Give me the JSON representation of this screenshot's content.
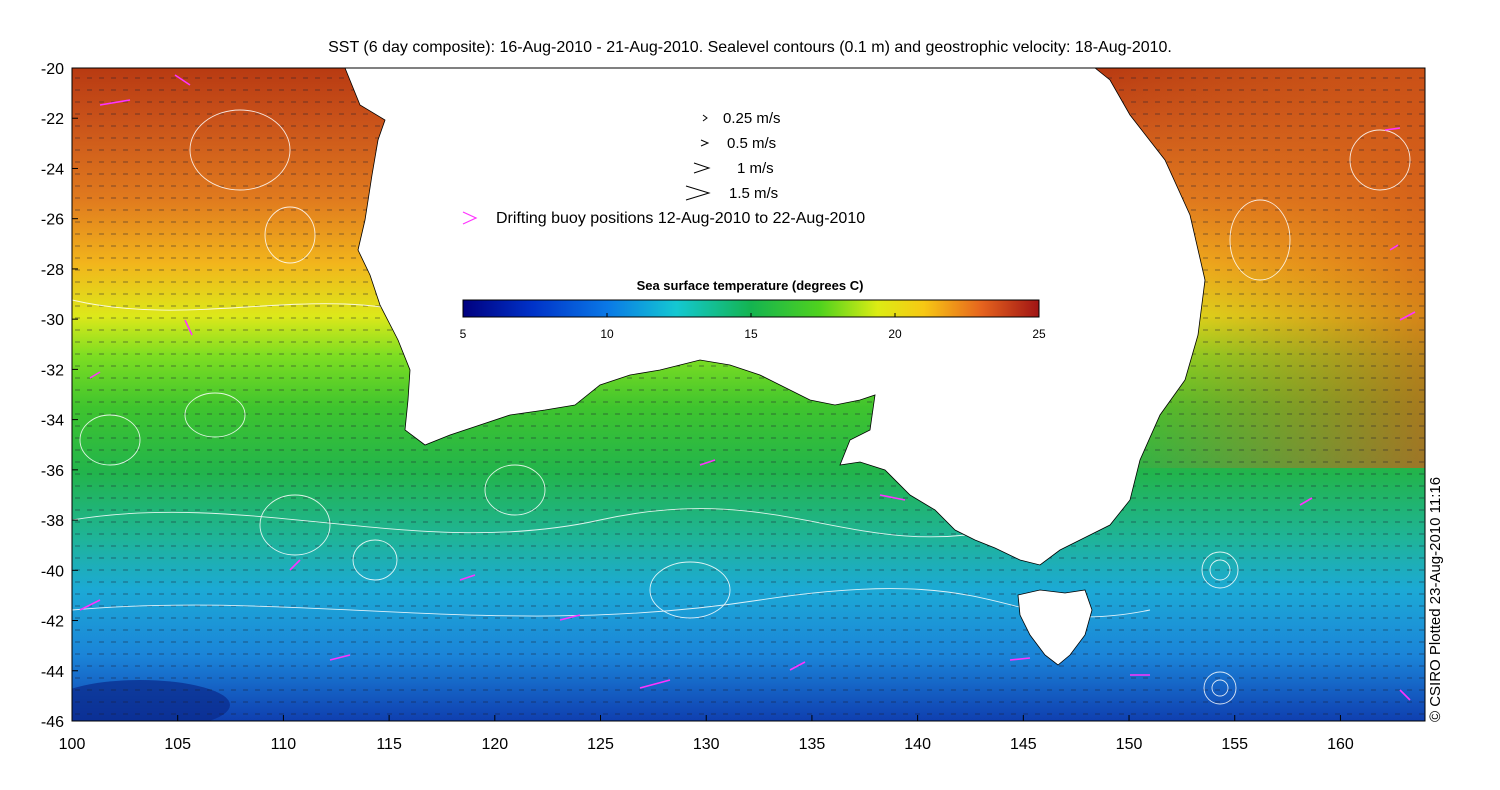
{
  "title": "SST (6 day composite): 16-Aug-2010 - 21-Aug-2010. Sealevel contours (0.1 m) and geostrophic velocity: 18-Aug-2010.",
  "credit": "© CSIRO Plotted 23-Aug-2010 11:16",
  "axes": {
    "x_ticks": [
      "100",
      "105",
      "110",
      "115",
      "120",
      "125",
      "130",
      "135",
      "140",
      "145",
      "150",
      "155",
      "160"
    ],
    "y_ticks": [
      "-20",
      "-22",
      "-24",
      "-26",
      "-28",
      "-30",
      "-32",
      "-34",
      "-36",
      "-38",
      "-40",
      "-42",
      "-44",
      "-46"
    ],
    "xlim": [
      100,
      164
    ],
    "ylim": [
      -46,
      -20
    ]
  },
  "legend": {
    "velocity_keys": [
      "0.25 m/s",
      "0.5 m/s",
      "1 m/s",
      "1.5 m/s"
    ],
    "buoy_label": "Drifting buoy positions 12-Aug-2010 to 22-Aug-2010",
    "buoy_color": "#ff33ff"
  },
  "colorbar": {
    "title": "Sea surface temperature (degrees C)",
    "ticks": [
      "5",
      "10",
      "15",
      "20",
      "25"
    ],
    "range": [
      5,
      25
    ]
  },
  "colors": {
    "land": "#ffffff",
    "contour": "#ffffff",
    "arrows": "#1a1a2e"
  }
}
